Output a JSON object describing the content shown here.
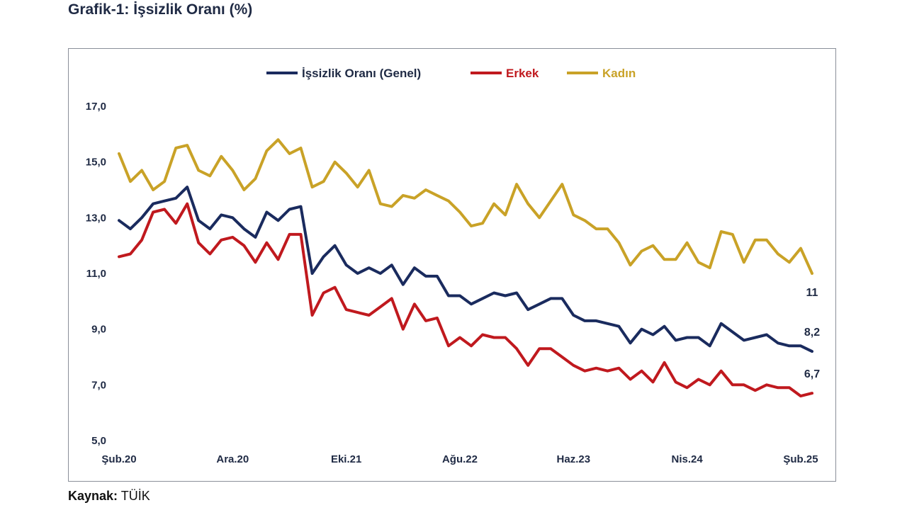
{
  "page": {
    "title": "Grafik-1: İşsizlik Oranı (%)",
    "source_label": "Kaynak:",
    "source_value": "TÜİK"
  },
  "colors": {
    "genel": "#1a2b5e",
    "erkek": "#c0191e",
    "kadin": "#c9a227",
    "axis_text": "#1f2a44"
  },
  "chart_data": {
    "type": "line",
    "title": "",
    "xlabel": "",
    "ylabel": "",
    "ylim": [
      5,
      17
    ],
    "y_ticks": [
      "17,0",
      "15,0",
      "13,0",
      "11,0",
      "9,0",
      "7,0",
      "5,0"
    ],
    "y_tick_values": [
      17,
      15,
      13,
      11,
      9,
      7,
      5
    ],
    "grid": false,
    "legend_position": "top",
    "x_tick_labels": [
      "Şub.20",
      "Ara.20",
      "Eki.21",
      "Ağu.22",
      "Haz.23",
      "Nis.24",
      "Şub.25"
    ],
    "x_tick_index": [
      0,
      10,
      20,
      30,
      40,
      50,
      60
    ],
    "end_labels": {
      "kadin": "11",
      "genel": "8,2",
      "erkek": "6,7"
    },
    "series": [
      {
        "key": "genel",
        "name": "İşsizlik Oranı (Genel)",
        "values": [
          12.9,
          12.6,
          13.0,
          13.5,
          13.6,
          13.7,
          14.1,
          12.9,
          12.6,
          13.1,
          13.0,
          12.6,
          12.3,
          13.2,
          12.9,
          13.3,
          13.4,
          11.0,
          11.6,
          12.0,
          11.3,
          11.0,
          11.2,
          11.0,
          11.3,
          10.6,
          11.2,
          10.9,
          10.9,
          10.2,
          10.2,
          9.9,
          10.1,
          10.3,
          10.2,
          10.3,
          9.7,
          9.9,
          10.1,
          10.1,
          9.5,
          9.3,
          9.3,
          9.2,
          9.1,
          8.5,
          9.0,
          8.8,
          9.1,
          8.6,
          8.7,
          8.7,
          8.4,
          9.2,
          8.9,
          8.6,
          8.7,
          8.8,
          8.5,
          8.4,
          8.4,
          8.2
        ]
      },
      {
        "key": "erkek",
        "name": "Erkek",
        "values": [
          11.6,
          11.7,
          12.2,
          13.2,
          13.3,
          12.8,
          13.5,
          12.1,
          11.7,
          12.2,
          12.3,
          12.0,
          11.4,
          12.1,
          11.5,
          12.4,
          12.4,
          9.5,
          10.3,
          10.5,
          9.7,
          9.6,
          9.5,
          9.8,
          10.1,
          9.0,
          9.9,
          9.3,
          9.4,
          8.4,
          8.7,
          8.4,
          8.8,
          8.7,
          8.7,
          8.3,
          7.7,
          8.3,
          8.3,
          8.0,
          7.7,
          7.5,
          7.6,
          7.5,
          7.6,
          7.2,
          7.5,
          7.1,
          7.8,
          7.1,
          6.9,
          7.2,
          7.0,
          7.5,
          7.0,
          7.0,
          6.8,
          7.0,
          6.9,
          6.9,
          6.6,
          6.7
        ]
      },
      {
        "key": "kadin",
        "name": "Kadın",
        "values": [
          15.3,
          14.3,
          14.7,
          14.0,
          14.3,
          15.5,
          15.6,
          14.7,
          14.5,
          15.2,
          14.7,
          14.0,
          14.4,
          15.4,
          15.8,
          15.3,
          15.5,
          14.1,
          14.3,
          15.0,
          14.6,
          14.1,
          14.7,
          13.5,
          13.4,
          13.8,
          13.7,
          14.0,
          13.8,
          13.6,
          13.2,
          12.7,
          12.8,
          13.5,
          13.1,
          14.2,
          13.5,
          13.0,
          13.6,
          14.2,
          13.1,
          12.9,
          12.6,
          12.6,
          12.1,
          11.3,
          11.8,
          12.0,
          11.5,
          11.5,
          12.1,
          11.4,
          11.2,
          12.5,
          12.4,
          11.4,
          12.2,
          12.2,
          11.7,
          11.4,
          11.9,
          11.0
        ]
      }
    ]
  }
}
